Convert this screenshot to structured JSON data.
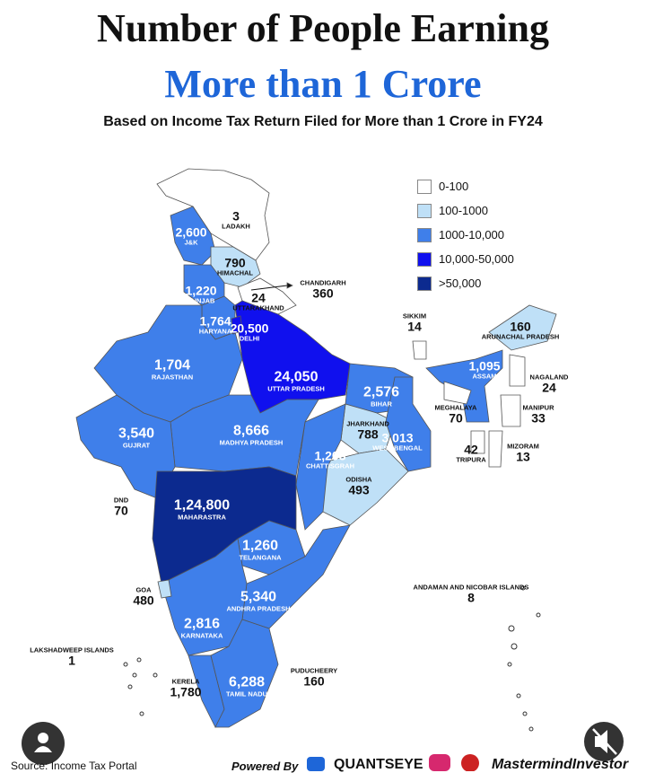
{
  "header": {
    "title": "Number of People Earning",
    "highlight": "More than 1 Crore",
    "subtitle": "Based on Income Tax Return Filed for More than 1 Crore in FY24"
  },
  "legend": [
    {
      "label": "0-100",
      "color": "#ffffff"
    },
    {
      "label": "100-1000",
      "color": "#bfe0f7"
    },
    {
      "label": "1000-10,000",
      "color": "#3f7fea"
    },
    {
      "label": "10,000-50,000",
      "color": "#1010ee"
    },
    {
      "label": ">50,000",
      "color": "#0c2a8f"
    }
  ],
  "regions": [
    {
      "name": "LADAKH",
      "value": "3"
    },
    {
      "name": "J&K",
      "value": "2,600"
    },
    {
      "name": "HIMACHAL",
      "value": "790"
    },
    {
      "name": "PUNJAB",
      "value": "1,220"
    },
    {
      "name": "CHANDIGARH",
      "value": "360"
    },
    {
      "name": "UTTARAKHAND",
      "value": "24"
    },
    {
      "name": "HARYANA",
      "value": "1,764"
    },
    {
      "name": "DELHI",
      "value": "20,500"
    },
    {
      "name": "RAJASTHAN",
      "value": "1,704"
    },
    {
      "name": "UTTAR PRADESH",
      "value": "24,050"
    },
    {
      "name": "SIKKIM",
      "value": "14"
    },
    {
      "name": "ARUNACHAL PRADESH",
      "value": "160"
    },
    {
      "name": "ASSAM",
      "value": "1,095"
    },
    {
      "name": "NAGALAND",
      "value": "24"
    },
    {
      "name": "MEGHALAYA",
      "value": "70"
    },
    {
      "name": "MANIPUR",
      "value": "33"
    },
    {
      "name": "BIHAR",
      "value": "2,576"
    },
    {
      "name": "JHARKHAND",
      "value": "788"
    },
    {
      "name": "WEST BENGAL",
      "value": "3,013"
    },
    {
      "name": "TRIPURA",
      "value": "42"
    },
    {
      "name": "MIZORAM",
      "value": "13"
    },
    {
      "name": "GUJRAT",
      "value": "3,540"
    },
    {
      "name": "MADHYA PRADESH",
      "value": "8,666"
    },
    {
      "name": "CHATTISGRAH",
      "value": "1,208"
    },
    {
      "name": "ODISHA",
      "value": "493"
    },
    {
      "name": "DND",
      "value": "70"
    },
    {
      "name": "MAHARASTRA",
      "value": "1,24,800"
    },
    {
      "name": "TELANGANA",
      "value": "1,260"
    },
    {
      "name": "GOA",
      "value": "480"
    },
    {
      "name": "ANDHRA PRADESH",
      "value": "5,340"
    },
    {
      "name": "KARNATAKA",
      "value": "2,816"
    },
    {
      "name": "ANDAMAN AND NICOBAR ISLANDS",
      "value": "8"
    },
    {
      "name": "LAKSHADWEEP ISLANDS",
      "value": "1"
    },
    {
      "name": "KERELA",
      "value": "1,780"
    },
    {
      "name": "TAMIL NADU",
      "value": "6,288"
    },
    {
      "name": "PUDUCHEERY",
      "value": "160"
    }
  ],
  "footer": {
    "source": "Source:  Income Tax Portal",
    "powered_by": "Powered By",
    "brand": "QUANTSEYE",
    "partner": "MastermindInvestor"
  }
}
